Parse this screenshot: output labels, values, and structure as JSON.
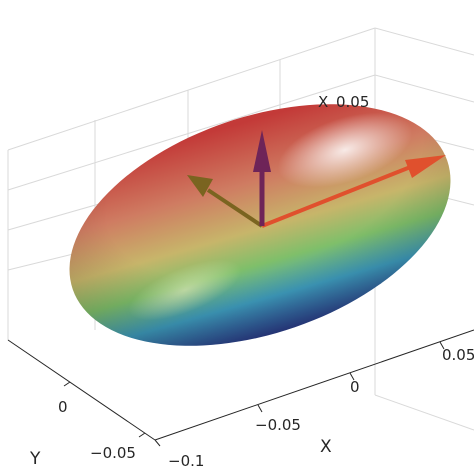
{
  "axes": {
    "x": {
      "label": "X",
      "ticks": [
        "−0.1",
        "−0.05",
        "0",
        "0.05"
      ]
    },
    "y": {
      "label": "Y",
      "ticks": [
        "−0.05",
        "0"
      ]
    }
  },
  "top_label": "X",
  "top_tick": "0.05",
  "arrows": [
    {
      "name": "x-direction-arrow",
      "color": "#e0502d"
    },
    {
      "name": "y-direction-arrow",
      "color": "#7a6420"
    },
    {
      "name": "z-direction-arrow",
      "color": "#6e2458"
    }
  ],
  "surface_colormap": [
    "#2f3a8a",
    "#3d7ec8",
    "#4fb37a",
    "#c9c35a",
    "#cf7a55",
    "#c43a36"
  ]
}
